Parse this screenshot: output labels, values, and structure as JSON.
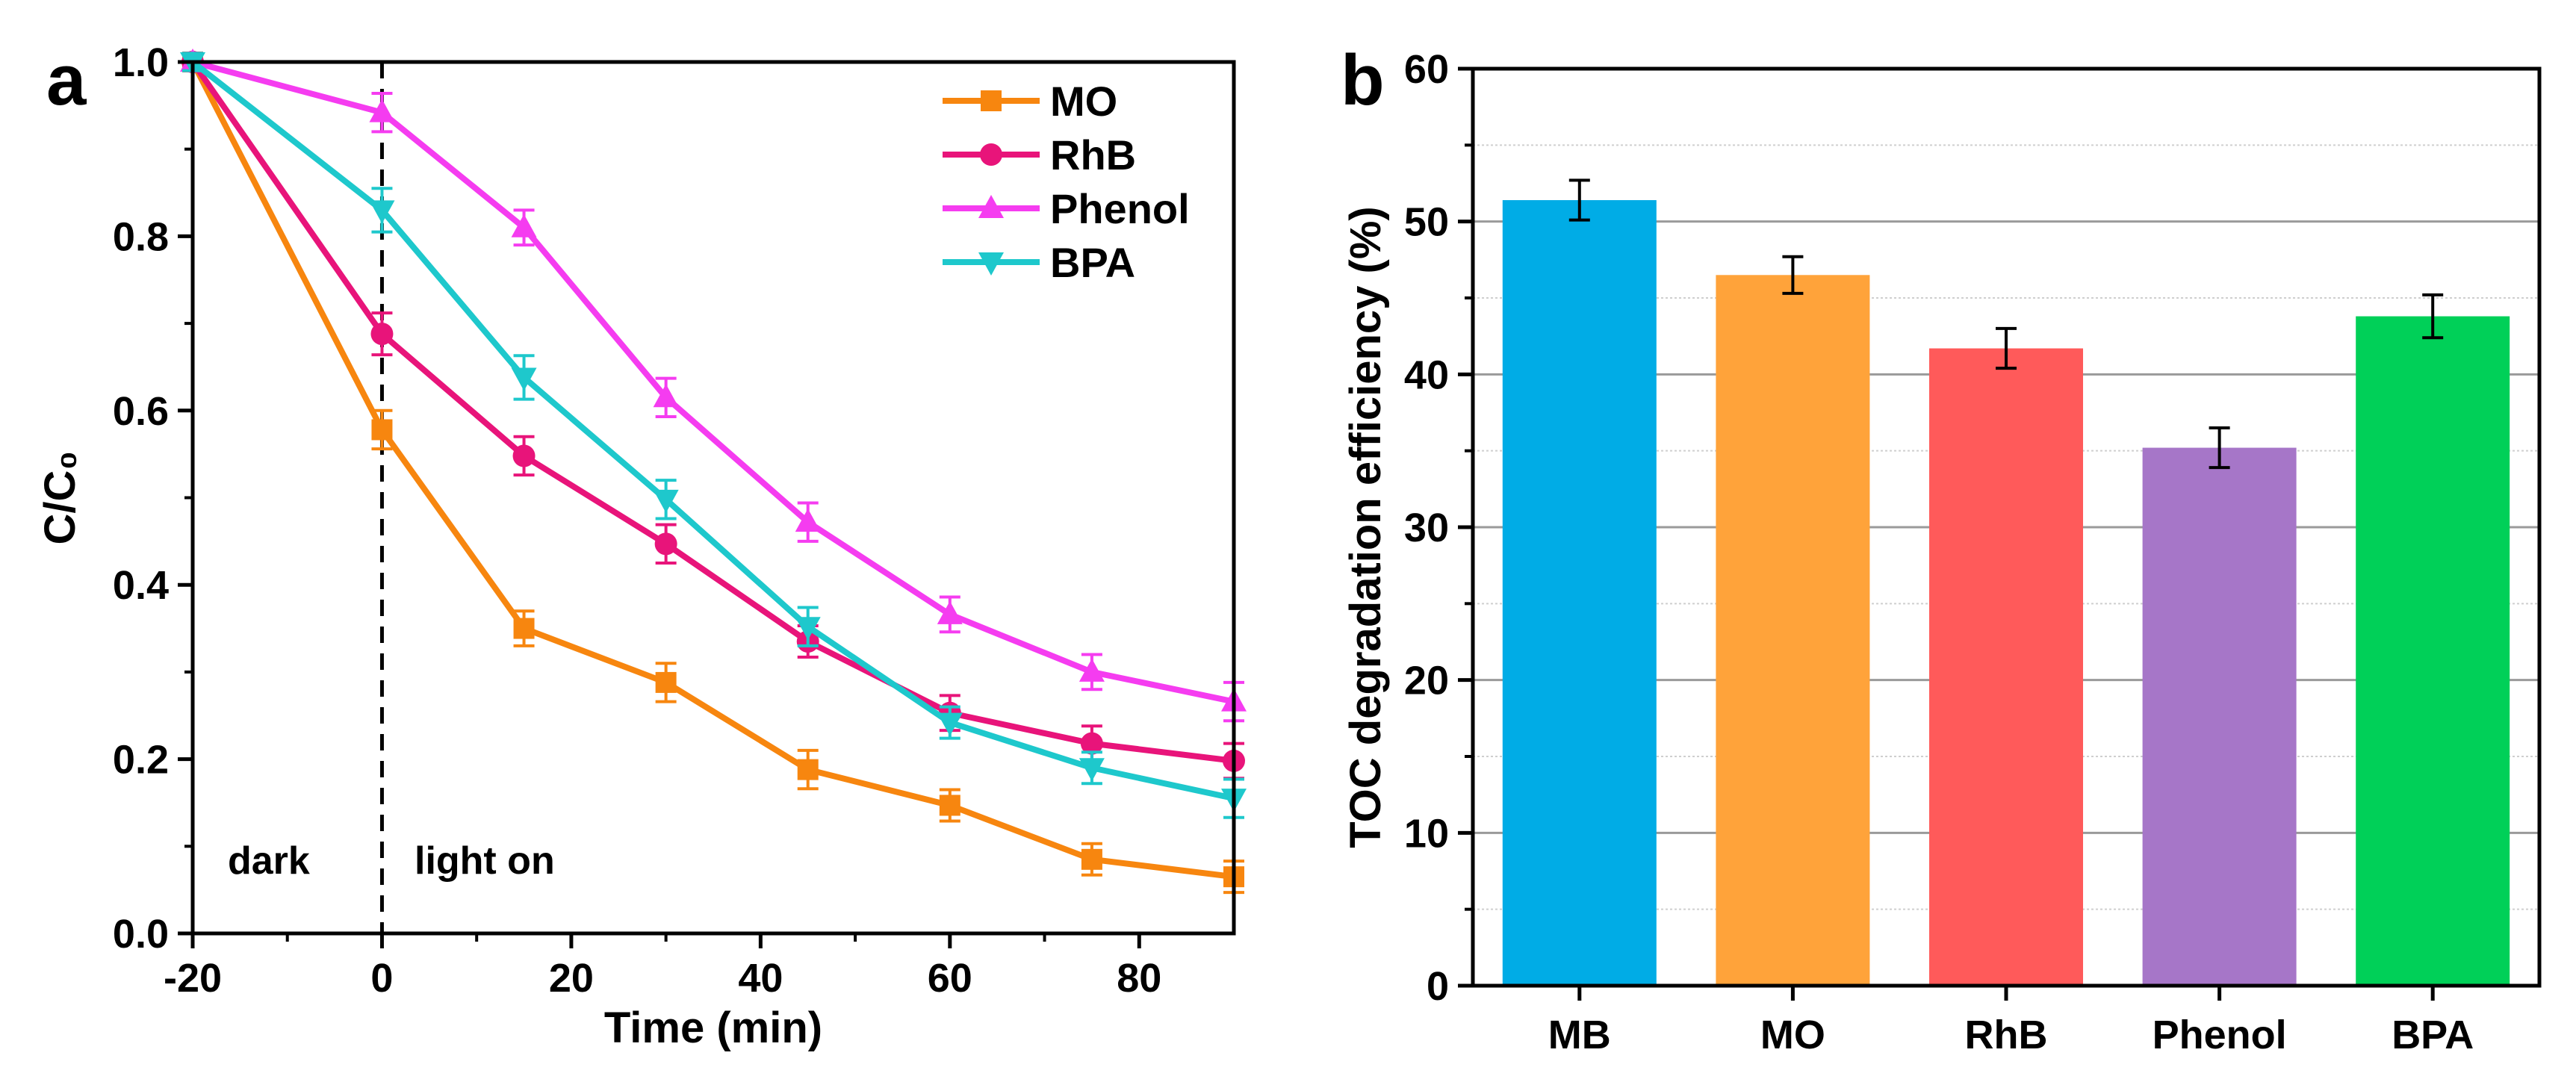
{
  "chart_data": [
    {
      "panel": "a",
      "type": "line",
      "xlabel": "Time (min)",
      "ylabel": "C/C₀",
      "xlim": [
        -20,
        90
      ],
      "ylim": [
        0.0,
        1.0
      ],
      "xticks": [
        -20,
        0,
        20,
        40,
        60,
        80
      ],
      "xtick_labels": [
        "-20",
        "0",
        "20",
        "40",
        "60",
        "80"
      ],
      "yticks": [
        0.0,
        0.2,
        0.4,
        0.6,
        0.8,
        1.0
      ],
      "ytick_labels": [
        "0.0",
        "0.2",
        "0.4",
        "0.6",
        "0.8",
        "1.0"
      ],
      "x": [
        -20,
        0,
        15,
        30,
        45,
        60,
        75,
        90
      ],
      "series": [
        {
          "name": "MO",
          "color": "#f7860f",
          "marker": "square",
          "values": [
            1.0,
            0.578,
            0.35,
            0.288,
            0.188,
            0.147,
            0.085,
            0.065
          ],
          "errors": [
            0.01,
            0.022,
            0.02,
            0.022,
            0.022,
            0.018,
            0.018,
            0.018
          ]
        },
        {
          "name": "RhB",
          "color": "#e8147a",
          "marker": "circle",
          "values": [
            1.0,
            0.688,
            0.548,
            0.447,
            0.335,
            0.253,
            0.218,
            0.198
          ],
          "errors": [
            0.01,
            0.024,
            0.022,
            0.022,
            0.018,
            0.02,
            0.02,
            0.02
          ]
        },
        {
          "name": "Phenol",
          "color": "#f53cf0",
          "marker": "triangle-up",
          "values": [
            1.0,
            0.942,
            0.81,
            0.615,
            0.472,
            0.366,
            0.3,
            0.266
          ],
          "errors": [
            0.01,
            0.022,
            0.02,
            0.022,
            0.022,
            0.02,
            0.02,
            0.022
          ]
        },
        {
          "name": "BPA",
          "color": "#1ec8cc",
          "marker": "triangle-down",
          "values": [
            1.0,
            0.83,
            0.638,
            0.498,
            0.352,
            0.242,
            0.19,
            0.155
          ],
          "errors": [
            0.01,
            0.025,
            0.025,
            0.022,
            0.022,
            0.018,
            0.018,
            0.022
          ]
        }
      ],
      "annotations": {
        "dark": "dark",
        "light": "light on"
      },
      "divider_x": 0,
      "legend_position": "top-right"
    },
    {
      "panel": "b",
      "type": "bar",
      "xlabel": "",
      "ylabel": "TOC degradation efficiency (%)",
      "ylim": [
        0,
        60
      ],
      "yticks": [
        0,
        10,
        20,
        30,
        40,
        50,
        60
      ],
      "ytick_labels": [
        "0",
        "10",
        "20",
        "30",
        "40",
        "50",
        "60"
      ],
      "categories": [
        "MB",
        "MO",
        "RhB",
        "Phenol",
        "BPA"
      ],
      "values": [
        51.4,
        46.5,
        41.7,
        35.2,
        43.8
      ],
      "errors": [
        1.3,
        1.2,
        1.3,
        1.3,
        1.4
      ],
      "colors": [
        "#00ace6",
        "#ffa33a",
        "#ff5a5a",
        "#a676c8",
        "#00d058"
      ],
      "grid": true
    }
  ]
}
